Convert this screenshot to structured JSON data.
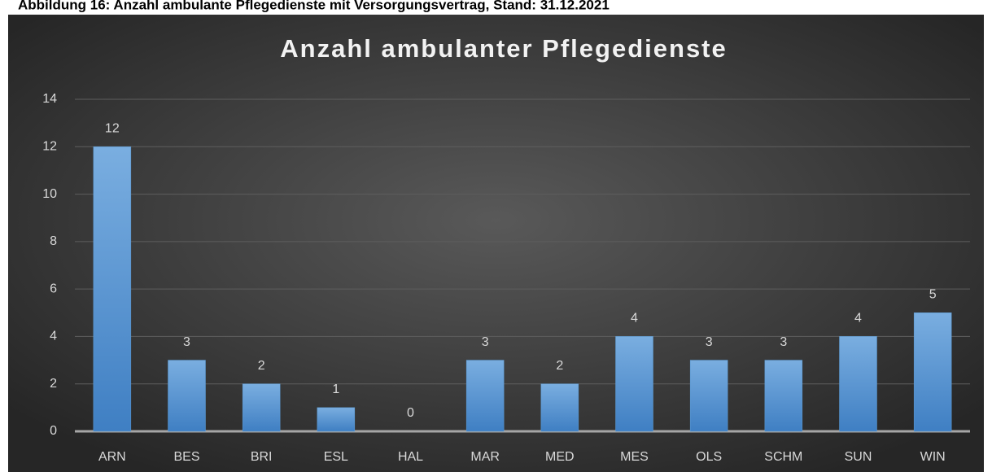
{
  "caption": "Abbildung 16: Anzahl ambulante Pflegedienste mit Versorgungsvertrag, Stand: 31.12.2021",
  "chart_data": {
    "type": "bar",
    "title": "Anzahl ambulanter Pflegedienste",
    "categories": [
      "ARN",
      "BES",
      "BRI",
      "ESL",
      "HAL",
      "MAR",
      "MED",
      "MES",
      "OLS",
      "SCHM",
      "SUN",
      "WIN"
    ],
    "values": [
      12,
      3,
      2,
      1,
      0,
      3,
      2,
      4,
      3,
      3,
      4,
      5
    ],
    "color": "#5b9bd5",
    "ylim": [
      0,
      14
    ],
    "yticks": [
      0,
      2,
      4,
      6,
      8,
      10,
      12,
      14
    ],
    "grid": true
  }
}
